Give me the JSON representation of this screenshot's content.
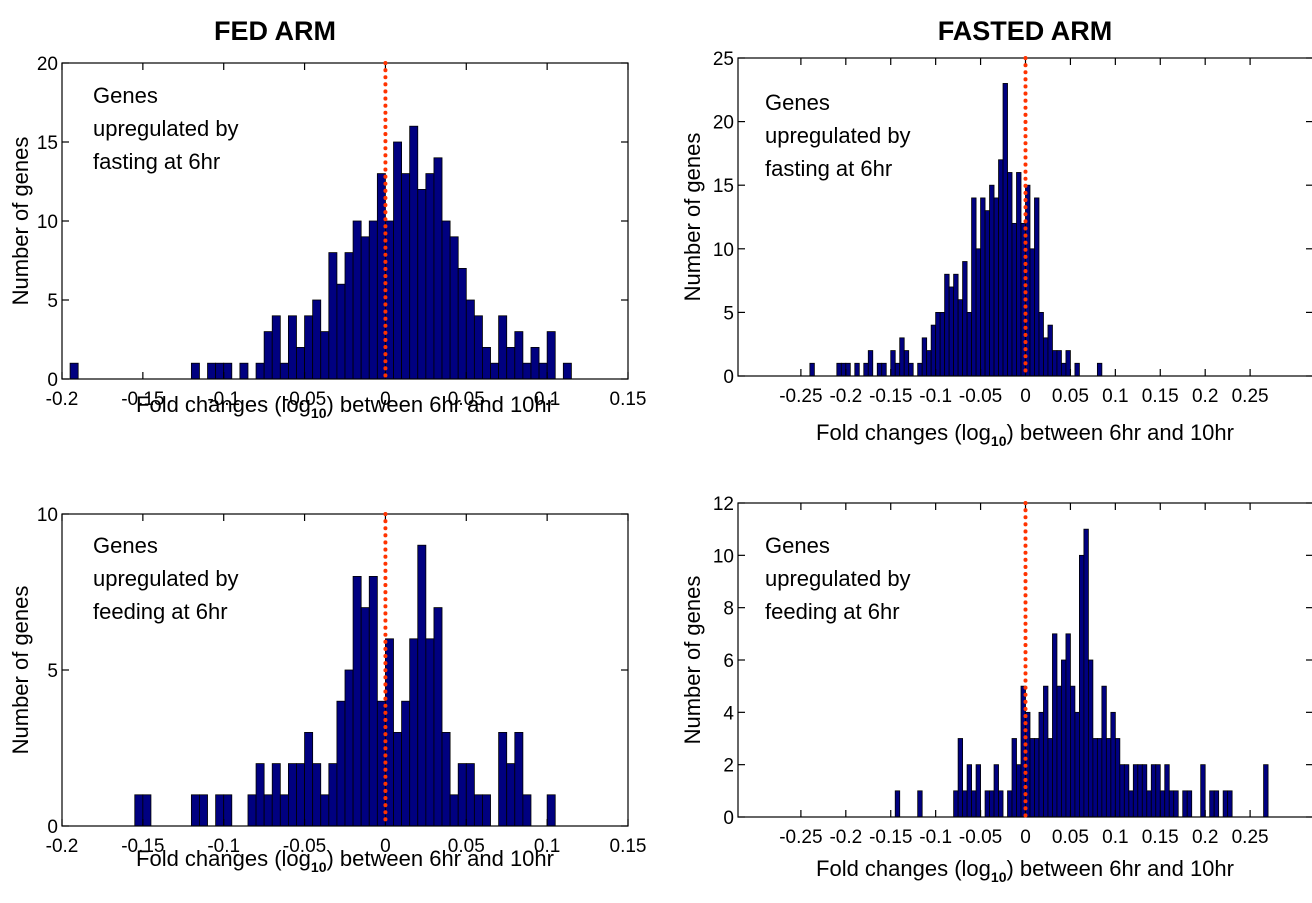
{
  "chart_data": [
    {
      "type": "histogram",
      "title": "FED ARM",
      "ylabel": "Number of genes",
      "xlabel": [
        "Fold changes (log",
        "10",
        ") between 6hr and 10hr"
      ],
      "annotation": [
        "Genes",
        "upregulated by",
        "fasting at 6hr"
      ],
      "color": "#000080",
      "vline": 0,
      "vline_color": "#ff3300",
      "xlim": [
        -0.2,
        0.15
      ],
      "xticks": [
        -0.2,
        -0.15,
        -0.1,
        -0.05,
        0,
        0.05,
        0.1,
        0.15
      ],
      "ylim": [
        0,
        20
      ],
      "yticks": [
        0,
        5,
        10,
        15,
        20
      ],
      "bins": [
        -0.2,
        -0.195,
        -0.19,
        -0.185,
        -0.18,
        -0.175,
        -0.17,
        -0.165,
        -0.16,
        -0.155,
        -0.15,
        -0.145,
        -0.14,
        -0.135,
        -0.13,
        -0.125,
        -0.12,
        -0.115,
        -0.11,
        -0.105,
        -0.1,
        -0.095,
        -0.09,
        -0.085,
        -0.08,
        -0.075,
        -0.07,
        -0.065,
        -0.06,
        -0.055,
        -0.05,
        -0.045,
        -0.04,
        -0.035,
        -0.03,
        -0.025,
        -0.02,
        -0.015,
        -0.01,
        -0.005,
        0,
        0.005,
        0.01,
        0.015,
        0.02,
        0.025,
        0.03,
        0.035,
        0.04,
        0.045,
        0.05,
        0.055,
        0.06,
        0.065,
        0.07,
        0.075,
        0.08,
        0.085,
        0.09,
        0.095,
        0.1,
        0.105,
        0.11,
        0.115,
        0.12
      ],
      "values": [
        0,
        1,
        0,
        0,
        0,
        0,
        0,
        0,
        0,
        0,
        0,
        0,
        0,
        0,
        0,
        0,
        1,
        0,
        1,
        1,
        1,
        0,
        1,
        0,
        1,
        3,
        4,
        1,
        4,
        2,
        4,
        5,
        3,
        8,
        6,
        8,
        10,
        9,
        10,
        13,
        10,
        15,
        13,
        16,
        12,
        13,
        14,
        10,
        9,
        7,
        5,
        4,
        2,
        1,
        4,
        2,
        3,
        1,
        2,
        1,
        3,
        0,
        1,
        0
      ]
    },
    {
      "type": "histogram",
      "title": "FASTED ARM",
      "ylabel": "Number of genes",
      "xlabel": [
        "Fold changes (log",
        "10",
        ") between 6hr and 10hr"
      ],
      "annotation": [
        "Genes",
        "upregulated by",
        "fasting at 6hr"
      ],
      "color": "#000080",
      "vline": 0,
      "vline_color": "#ff3300",
      "xlim": [
        -0.32,
        0.32
      ],
      "xticks": [
        -0.25,
        -0.2,
        -0.15,
        -0.1,
        -0.05,
        0,
        0.05,
        0.1,
        0.15,
        0.2,
        0.25
      ],
      "ylim": [
        0,
        25
      ],
      "yticks": [
        0,
        5,
        10,
        15,
        20,
        25
      ],
      "bins": [
        -0.24,
        -0.235,
        -0.23,
        -0.225,
        -0.22,
        -0.215,
        -0.21,
        -0.205,
        -0.2,
        -0.195,
        -0.19,
        -0.185,
        -0.18,
        -0.175,
        -0.17,
        -0.165,
        -0.16,
        -0.155,
        -0.15,
        -0.145,
        -0.14,
        -0.135,
        -0.13,
        -0.125,
        -0.12,
        -0.115,
        -0.11,
        -0.105,
        -0.1,
        -0.095,
        -0.09,
        -0.085,
        -0.08,
        -0.075,
        -0.07,
        -0.065,
        -0.06,
        -0.055,
        -0.05,
        -0.045,
        -0.04,
        -0.035,
        -0.03,
        -0.025,
        -0.02,
        -0.015,
        -0.01,
        -0.005,
        0,
        0.005,
        0.01,
        0.015,
        0.02,
        0.025,
        0.03,
        0.035,
        0.04,
        0.045,
        0.05,
        0.055,
        0.06,
        0.065,
        0.07,
        0.075,
        0.08,
        0.085,
        0.09
      ],
      "values": [
        1,
        0,
        0,
        0,
        0,
        0,
        1,
        1,
        1,
        0,
        1,
        0,
        1,
        2,
        0,
        1,
        1,
        0,
        2,
        1,
        3,
        2,
        1,
        0,
        1,
        3,
        2,
        4,
        5,
        5,
        8,
        7,
        8,
        6,
        9,
        5,
        14,
        10,
        14,
        13,
        15,
        14,
        17,
        23,
        16,
        12,
        16,
        12,
        15,
        10,
        14,
        5,
        3,
        4,
        2,
        2,
        1,
        2,
        0,
        1,
        0,
        0,
        0,
        0,
        1,
        0
      ]
    },
    {
      "type": "histogram",
      "ylabel": "Number of genes",
      "xlabel": [
        "Fold changes (log",
        "10",
        ") between 6hr and 10hr"
      ],
      "annotation": [
        "Genes",
        "upregulated by",
        "feeding at 6hr"
      ],
      "color": "#000080",
      "vline": 0,
      "vline_color": "#ff3300",
      "xlim": [
        -0.2,
        0.15
      ],
      "xticks": [
        -0.2,
        -0.15,
        -0.1,
        -0.05,
        0,
        0.05,
        0.1,
        0.15
      ],
      "ylim": [
        0,
        10
      ],
      "yticks": [
        0,
        5,
        10
      ],
      "bins": [
        -0.16,
        -0.155,
        -0.15,
        -0.145,
        -0.14,
        -0.135,
        -0.13,
        -0.125,
        -0.12,
        -0.115,
        -0.11,
        -0.105,
        -0.1,
        -0.095,
        -0.09,
        -0.085,
        -0.08,
        -0.075,
        -0.07,
        -0.065,
        -0.06,
        -0.055,
        -0.05,
        -0.045,
        -0.04,
        -0.035,
        -0.03,
        -0.025,
        -0.02,
        -0.015,
        -0.01,
        -0.005,
        0,
        0.005,
        0.01,
        0.015,
        0.02,
        0.025,
        0.03,
        0.035,
        0.04,
        0.045,
        0.05,
        0.055,
        0.06,
        0.065,
        0.07,
        0.075,
        0.08,
        0.085,
        0.09,
        0.095,
        0.1,
        0.105
      ],
      "values": [
        0,
        1,
        1,
        0,
        0,
        0,
        0,
        0,
        1,
        1,
        0,
        1,
        1,
        0,
        0,
        1,
        2,
        1,
        2,
        1,
        2,
        2,
        3,
        2,
        1,
        2,
        4,
        5,
        8,
        7,
        8,
        4,
        6,
        3,
        4,
        6,
        9,
        6,
        7,
        3,
        1,
        2,
        2,
        1,
        1,
        0,
        3,
        2,
        3,
        1,
        0,
        0,
        1
      ]
    },
    {
      "type": "histogram",
      "ylabel": "Number of genes",
      "xlabel": [
        "Fold changes (log",
        "10",
        ") between 6hr and 10hr"
      ],
      "annotation": [
        "Genes",
        "upregulated by",
        "feeding at 6hr"
      ],
      "color": "#000080",
      "vline": 0,
      "vline_color": "#ff3300",
      "xlim": [
        -0.32,
        0.32
      ],
      "xticks": [
        -0.25,
        -0.2,
        -0.15,
        -0.1,
        -0.05,
        0,
        0.05,
        0.1,
        0.15,
        0.2,
        0.25
      ],
      "ylim": [
        0,
        12
      ],
      "yticks": [
        0,
        2,
        4,
        6,
        8,
        10,
        12
      ],
      "bins": [
        -0.15,
        -0.145,
        -0.14,
        -0.135,
        -0.13,
        -0.125,
        -0.12,
        -0.115,
        -0.11,
        -0.105,
        -0.1,
        -0.095,
        -0.09,
        -0.085,
        -0.08,
        -0.075,
        -0.07,
        -0.065,
        -0.06,
        -0.055,
        -0.05,
        -0.045,
        -0.04,
        -0.035,
        -0.03,
        -0.025,
        -0.02,
        -0.015,
        -0.01,
        -0.005,
        0,
        0.005,
        0.01,
        0.015,
        0.02,
        0.025,
        0.03,
        0.035,
        0.04,
        0.045,
        0.05,
        0.055,
        0.06,
        0.065,
        0.07,
        0.075,
        0.08,
        0.085,
        0.09,
        0.095,
        0.1,
        0.105,
        0.11,
        0.115,
        0.12,
        0.125,
        0.13,
        0.135,
        0.14,
        0.145,
        0.15,
        0.155,
        0.16,
        0.165,
        0.17,
        0.175,
        0.18,
        0.185,
        0.19,
        0.195,
        0.2,
        0.205,
        0.21,
        0.215,
        0.22,
        0.225,
        0.23,
        0.235,
        0.24,
        0.245,
        0.25,
        0.255,
        0.26,
        0.265,
        0.27,
        0.275
      ],
      "values": [
        0,
        1,
        0,
        0,
        0,
        0,
        1,
        0,
        0,
        0,
        0,
        0,
        0,
        0,
        1,
        3,
        1,
        2,
        1,
        2,
        0,
        1,
        1,
        2,
        1,
        0,
        1,
        3,
        2,
        5,
        4,
        3,
        3,
        4,
        5,
        3,
        7,
        5,
        6,
        7,
        5,
        4,
        10,
        11,
        6,
        3,
        3,
        5,
        3,
        4,
        3,
        2,
        2,
        1,
        2,
        2,
        2,
        1,
        2,
        2,
        1,
        2,
        1,
        1,
        0,
        1,
        1,
        0,
        0,
        2,
        0,
        1,
        1,
        0,
        1,
        1,
        0,
        0,
        0,
        0,
        0,
        0,
        0,
        2,
        0
      ]
    }
  ]
}
